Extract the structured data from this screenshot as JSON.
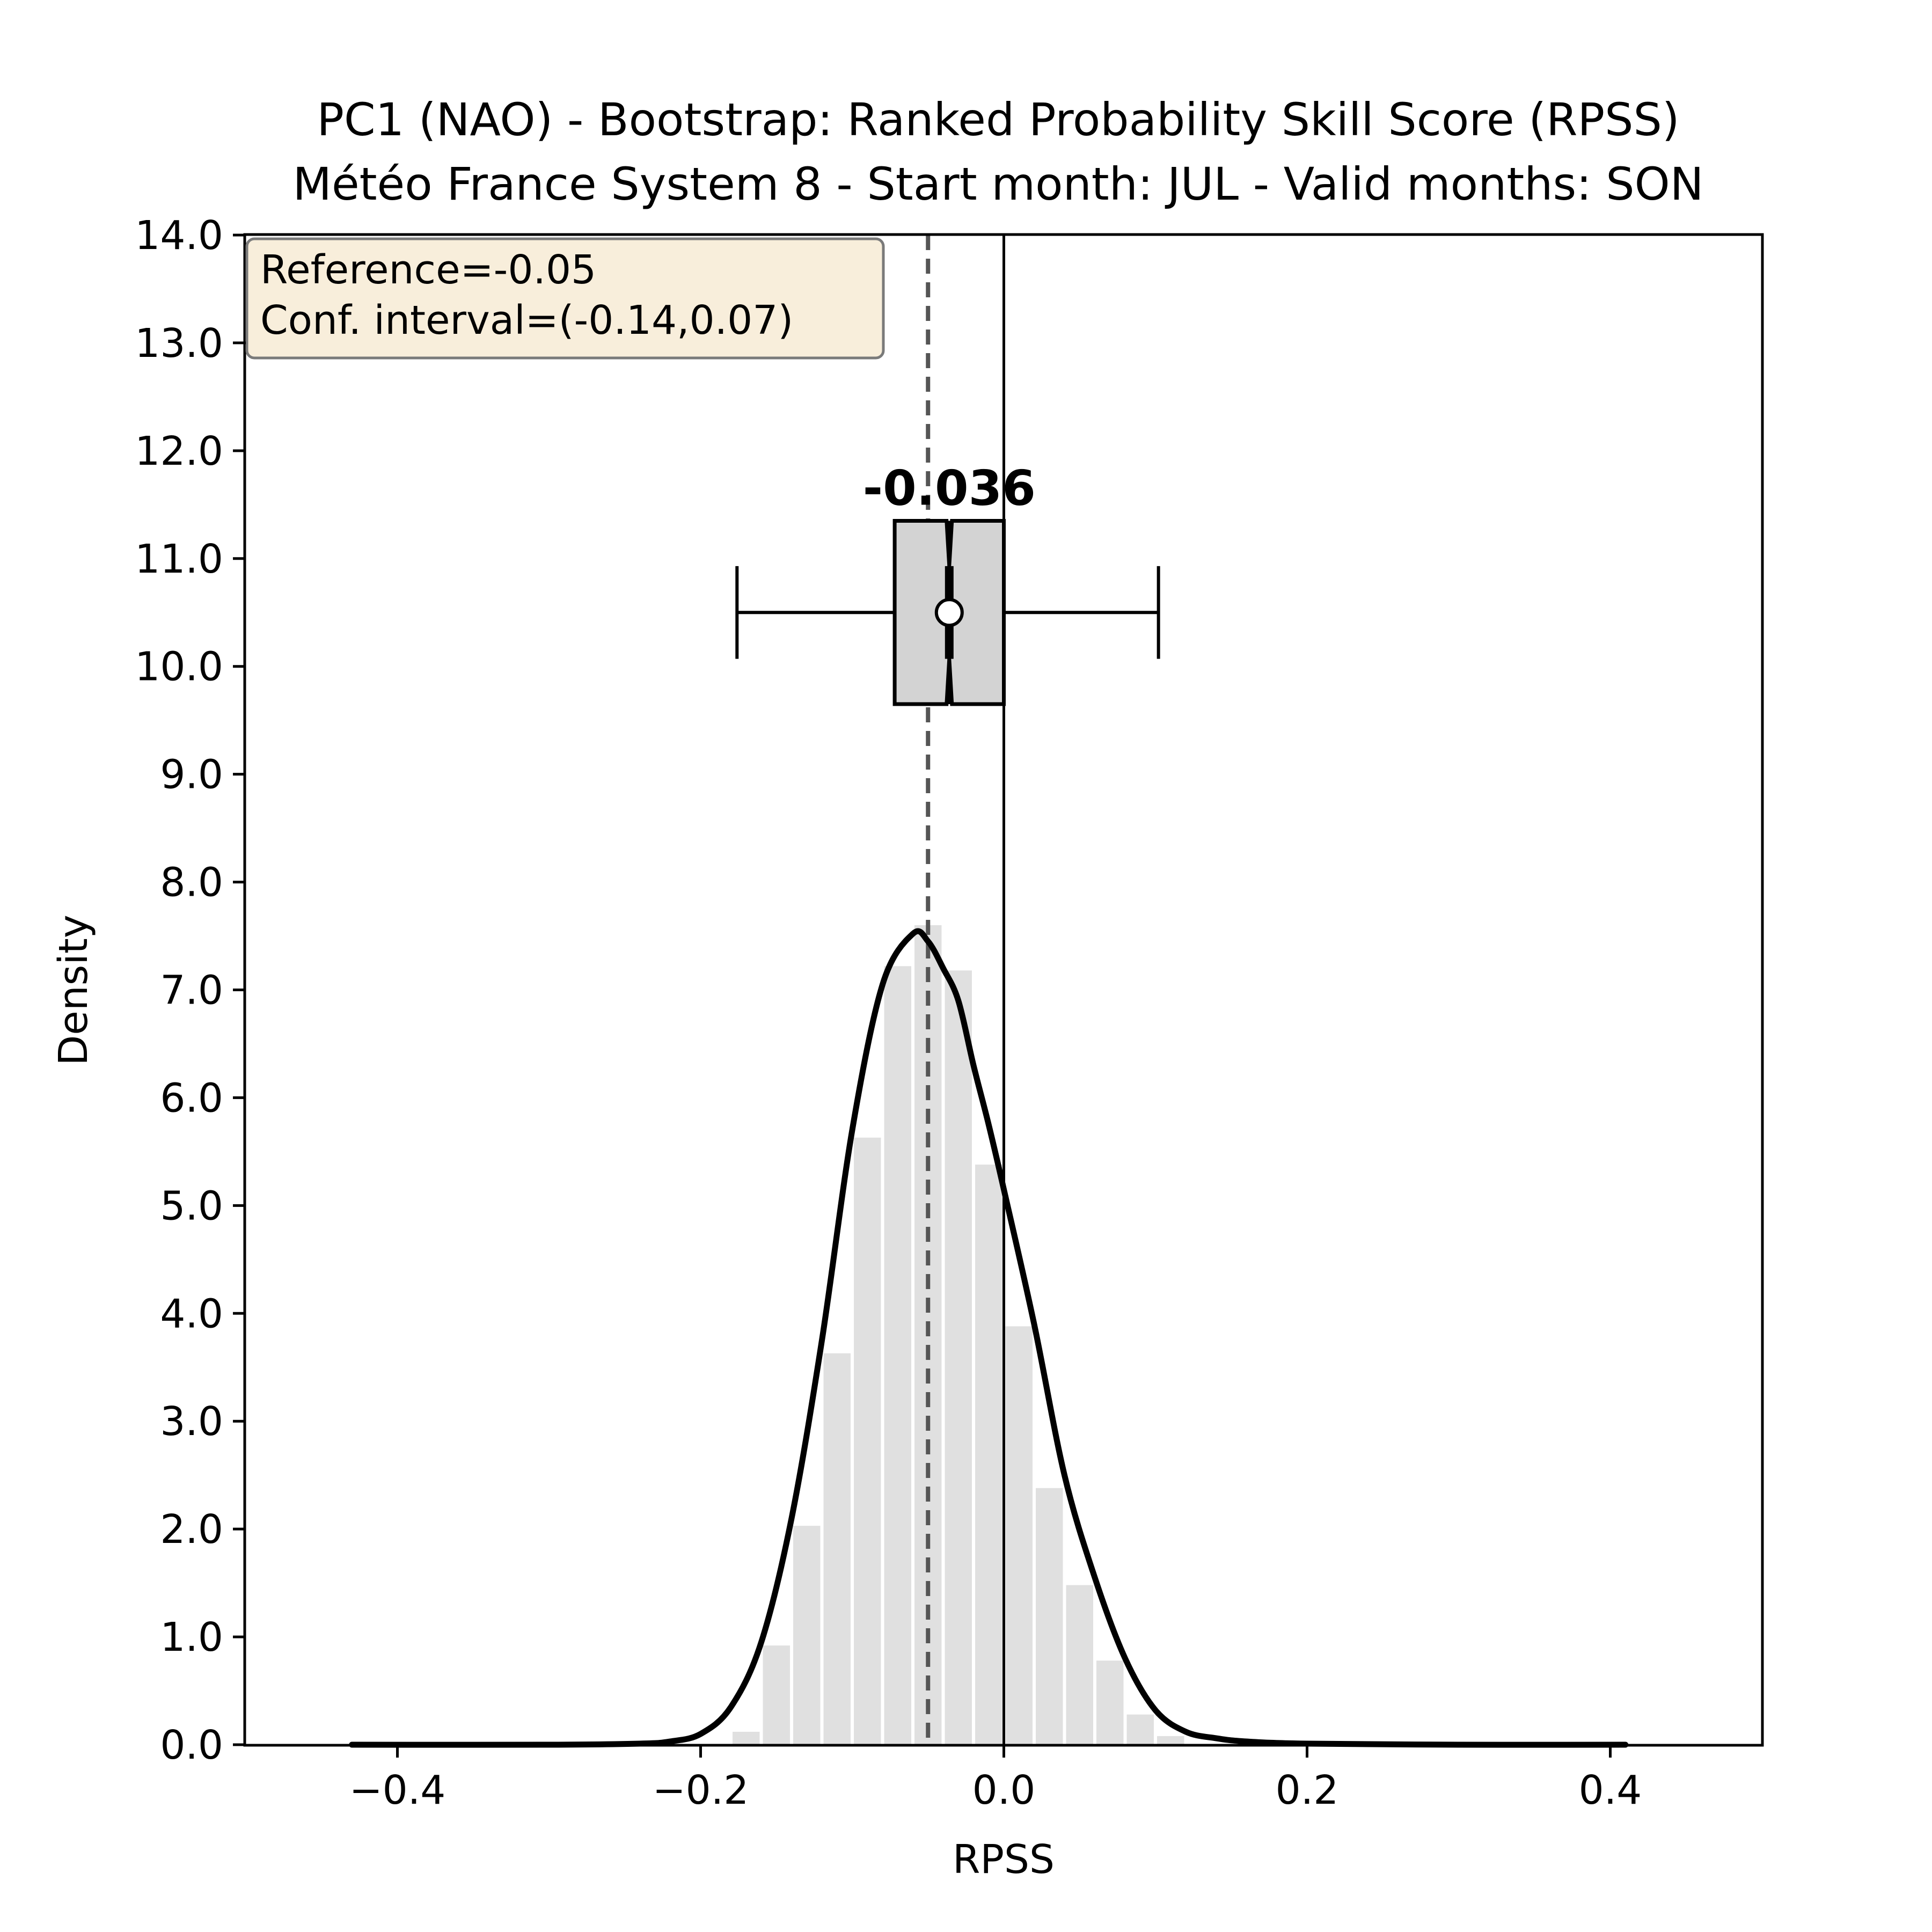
{
  "chart_data": {
    "type": "histogram",
    "title_lines": [
      "PC1 (NAO) - Bootstrap: Ranked Probability Skill Score (RPSS)",
      "Météo France System 8 - Start month: JUL - Valid months: SON"
    ],
    "xlabel": "RPSS",
    "ylabel": "Density",
    "xlim": [
      -0.5,
      0.5
    ],
    "ylim": [
      0,
      14
    ],
    "x_ticks": [
      -0.4,
      -0.2,
      0.0,
      0.2,
      0.4
    ],
    "x_tick_labels": [
      "−0.4",
      "−0.2",
      "0.0",
      "0.2",
      "0.4"
    ],
    "y_ticks": [
      0,
      1,
      2,
      3,
      4,
      5,
      6,
      7,
      8,
      9,
      10,
      11,
      12,
      13,
      14
    ],
    "y_tick_labels": [
      "0.0",
      "1.0",
      "2.0",
      "3.0",
      "4.0",
      "5.0",
      "6.0",
      "7.0",
      "8.0",
      "9.0",
      "10.0",
      "11.0",
      "12.0",
      "13.0",
      "14.0"
    ],
    "grid": false,
    "histogram": {
      "bin_width": 0.02,
      "bins": [
        {
          "x0": -0.18,
          "x1": -0.16,
          "density": 0.12
        },
        {
          "x0": -0.16,
          "x1": -0.14,
          "density": 0.92
        },
        {
          "x0": -0.14,
          "x1": -0.12,
          "density": 2.03
        },
        {
          "x0": -0.12,
          "x1": -0.1,
          "density": 3.63
        },
        {
          "x0": -0.1,
          "x1": -0.08,
          "density": 5.63
        },
        {
          "x0": -0.08,
          "x1": -0.06,
          "density": 7.22
        },
        {
          "x0": -0.06,
          "x1": -0.04,
          "density": 7.6
        },
        {
          "x0": -0.04,
          "x1": -0.02,
          "density": 7.18
        },
        {
          "x0": -0.02,
          "x1": 0.0,
          "density": 5.38
        },
        {
          "x0": 0.0,
          "x1": 0.02,
          "density": 3.88
        },
        {
          "x0": 0.02,
          "x1": 0.04,
          "density": 2.38
        },
        {
          "x0": 0.04,
          "x1": 0.06,
          "density": 1.48
        },
        {
          "x0": 0.06,
          "x1": 0.08,
          "density": 0.78
        },
        {
          "x0": 0.08,
          "x1": 0.1,
          "density": 0.28
        },
        {
          "x0": 0.1,
          "x1": 0.12,
          "density": 0.08
        }
      ]
    },
    "kde_curve": {
      "x": [
        -0.43,
        -0.3,
        -0.24,
        -0.22,
        -0.2,
        -0.18,
        -0.16,
        -0.14,
        -0.12,
        -0.1,
        -0.08,
        -0.06,
        -0.05,
        -0.04,
        -0.03,
        -0.02,
        -0.01,
        0.0,
        0.02,
        0.04,
        0.06,
        0.08,
        0.1,
        0.12,
        0.14,
        0.16,
        0.2,
        0.3,
        0.41
      ],
      "y": [
        0.0,
        0.0,
        0.01,
        0.03,
        0.1,
        0.35,
        0.95,
        2.1,
        3.75,
        5.7,
        7.05,
        7.52,
        7.45,
        7.2,
        6.9,
        6.3,
        5.75,
        5.15,
        3.9,
        2.5,
        1.55,
        0.8,
        0.32,
        0.12,
        0.06,
        0.03,
        0.01,
        0.0,
        0.0
      ]
    },
    "reference_line": {
      "x": -0.05,
      "style": "dashed",
      "color": "#555555"
    },
    "zero_line": {
      "x": 0.0,
      "color": "#000000"
    },
    "boxplot": {
      "y_center": 10.5,
      "whisker_low": -0.176,
      "q1": -0.072,
      "median": -0.036,
      "q3": 0.0,
      "whisker_high": 0.102,
      "mean_marker": -0.036,
      "label": "-0.036"
    },
    "info_box": {
      "lines": [
        "Reference=-0.05",
        "Conf. interval=(-0.14,0.07)"
      ],
      "placement": "top-left",
      "background": "#f8eedb"
    },
    "colors": {
      "bars": "#e0e0e0",
      "kde": "#000000",
      "box_fill": "#d3d3d3"
    }
  }
}
